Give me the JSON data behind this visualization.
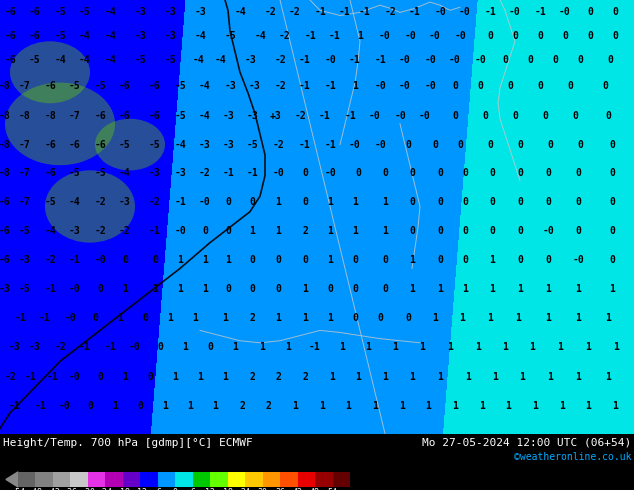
{
  "title_left": "Height/Temp. 700 hPa [gdmp][°C] ECMWF",
  "title_right": "Mo 27-05-2024 12:00 UTC (06+54)",
  "credit": "©weatheronline.co.uk",
  "colorbar_values": [
    -54,
    -48,
    -42,
    -36,
    -30,
    -24,
    -18,
    -12,
    -6,
    0,
    6,
    12,
    18,
    24,
    30,
    36,
    42,
    48,
    54
  ],
  "colorbar_colors": [
    "#646464",
    "#828282",
    "#a0a0a0",
    "#c8c8c8",
    "#e632e6",
    "#b400b4",
    "#6400c8",
    "#0000ff",
    "#0096ff",
    "#00e6e6",
    "#00c800",
    "#64ff00",
    "#ffff00",
    "#ffc800",
    "#ff9600",
    "#ff5000",
    "#e60000",
    "#960000",
    "#640000"
  ],
  "fig_width": 6.34,
  "fig_height": 4.9,
  "fig_dpi": 100,
  "bottom_bar_color": "#000000",
  "label_color": "#ffffff",
  "credit_color": "#00aaff",
  "tick_label_color": "#ffffff",
  "map_green_dark": "#009600",
  "map_green_mid": "#00c800",
  "map_green_light": "#64c800",
  "map_yellow": "#ffff00",
  "map_yellow_green": "#c8ff00",
  "contour_line_color": "#c8c8c8",
  "number_color": "#000000",
  "font_size_map": 7.0,
  "font_size_bar_label": 8.0,
  "font_size_credit": 7.0,
  "font_size_tick": 6.0
}
